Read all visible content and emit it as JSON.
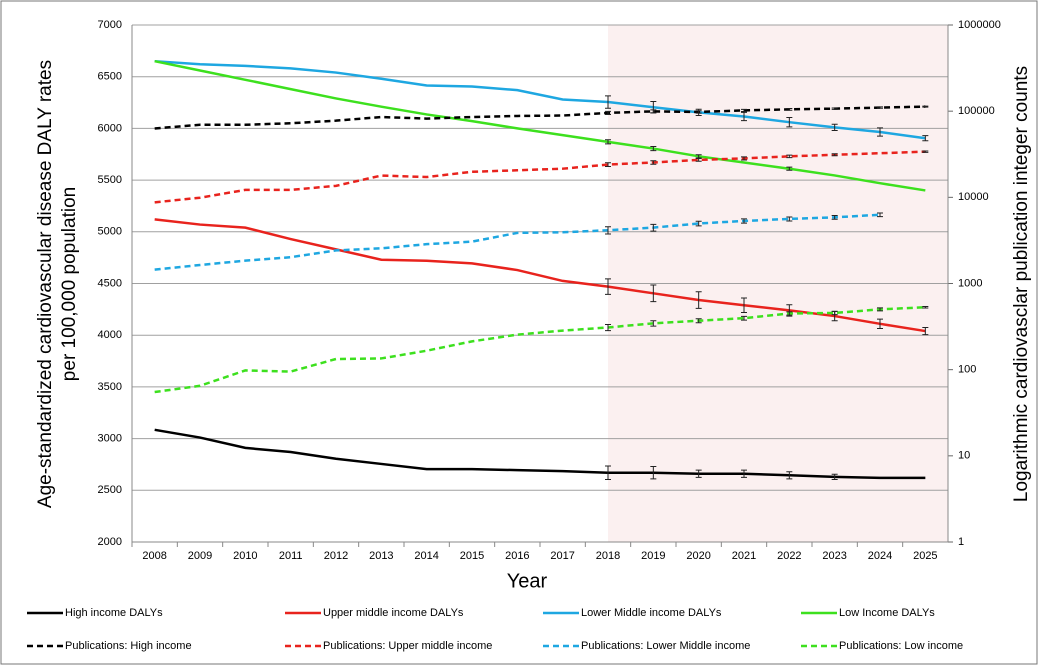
{
  "chart_data": {
    "type": "line",
    "x_label": "Year",
    "y_label": [
      "Age-standardized cardiovascular disease DALY  rates",
      "per 100,000 population"
    ],
    "y2_label": "Logarithmic cardiovasclar publication integer counts",
    "categories": [
      "2008",
      "2009",
      "2010",
      "2011",
      "2012",
      "2013",
      "2014",
      "2015",
      "2016",
      "2017",
      "2018",
      "2019",
      "2020",
      "2021",
      "2022",
      "2023",
      "2024",
      "2025"
    ],
    "shade_from": "2018",
    "ylim": [
      2000,
      7000
    ],
    "yticks": [
      2000,
      2500,
      3000,
      3500,
      4000,
      4500,
      5000,
      5500,
      6000,
      6500,
      7000
    ],
    "y2lim": [
      1,
      1000000
    ],
    "y2ticks": [
      1,
      10,
      100,
      1000,
      10000,
      100000,
      1000000
    ],
    "y2_log": true,
    "grid": true,
    "series": [
      {
        "name": "High income DALYs",
        "color": "#000000",
        "dashed": false,
        "values": [
          3085,
          3010,
          2910,
          2870,
          2805,
          2755,
          2705,
          2705,
          2695,
          2685,
          2670,
          2670,
          2660,
          2660,
          2645,
          2630,
          2620,
          2620
        ],
        "errors": [
          null,
          null,
          null,
          null,
          null,
          null,
          null,
          null,
          null,
          null,
          65,
          60,
          35,
          35,
          35,
          25,
          null,
          null
        ]
      },
      {
        "name": "Upper middle income DALYs",
        "color": "#e8231d",
        "dashed": false,
        "values": [
          5120,
          5070,
          5040,
          4930,
          4830,
          4730,
          4720,
          4695,
          4630,
          4525,
          4470,
          4405,
          4340,
          4290,
          4240,
          4185,
          4110,
          4040
        ],
        "errors": [
          null,
          null,
          null,
          null,
          null,
          null,
          null,
          null,
          null,
          null,
          75,
          80,
          80,
          70,
          55,
          45,
          45,
          35
        ]
      },
      {
        "name": "Lower Middle income DALYs",
        "color": "#1ea7e1",
        "dashed": false,
        "values": [
          6650,
          6620,
          6605,
          6580,
          6540,
          6480,
          6415,
          6405,
          6370,
          6280,
          6255,
          6205,
          6155,
          6115,
          6060,
          6010,
          5965,
          5905
        ],
        "errors": [
          null,
          null,
          null,
          null,
          null,
          null,
          null,
          null,
          null,
          null,
          60,
          55,
          30,
          40,
          45,
          30,
          40,
          25
        ]
      },
      {
        "name": "Low Income DALYs",
        "color": "#3de01e",
        "dashed": false,
        "values": [
          6650,
          6560,
          6470,
          6380,
          6290,
          6210,
          6135,
          6070,
          6000,
          5935,
          5870,
          5805,
          5730,
          5670,
          5610,
          5545,
          5470,
          5400
        ],
        "errors": [
          null,
          null,
          null,
          null,
          null,
          null,
          null,
          null,
          null,
          null,
          20,
          20,
          15,
          null,
          15,
          null,
          null,
          null
        ]
      },
      {
        "name": "Publications: High income",
        "color": "#000000",
        "dashed": true,
        "axis": "y2",
        "values": [
          63000,
          69500,
          69500,
          72400,
          77600,
          85500,
          82000,
          85500,
          88000,
          89000,
          95500,
          99500,
          98000,
          102000,
          105000,
          107000,
          110000,
          113000
        ],
        "errors": [
          null,
          null,
          null,
          null,
          null,
          null,
          null,
          null,
          null,
          null,
          4000,
          4000,
          3000,
          3000,
          2500,
          2000,
          2000,
          1500
        ]
      },
      {
        "name": "Publications: Upper middle income",
        "color": "#e8231d",
        "dashed": true,
        "axis": "y2",
        "values": [
          8750,
          9900,
          12200,
          12200,
          13600,
          17900,
          17200,
          19800,
          20600,
          21500,
          24000,
          25400,
          27200,
          28300,
          29900,
          31200,
          32500,
          33900
        ],
        "errors": [
          null,
          null,
          null,
          null,
          null,
          null,
          null,
          null,
          null,
          null,
          1200,
          1200,
          1000,
          1200,
          1000,
          800,
          null,
          600
        ]
      },
      {
        "name": "Publications: Lower Middle income",
        "color": "#1ea7e1",
        "dashed": true,
        "axis": "y2",
        "values": [
          1450,
          1640,
          1840,
          2020,
          2420,
          2560,
          2860,
          3060,
          3870,
          3930,
          4150,
          4450,
          4970,
          5320,
          5620,
          5860,
          6280,
          null
        ],
        "errors": [
          null,
          null,
          null,
          null,
          null,
          null,
          null,
          null,
          null,
          null,
          400,
          400,
          300,
          300,
          300,
          300,
          300,
          null
        ]
      },
      {
        "name": "Publications: Low income",
        "color": "#3de01e",
        "dashed": true,
        "axis": "y2",
        "values": [
          55,
          65,
          98,
          95,
          133,
          135,
          166,
          213,
          255,
          284,
          309,
          345,
          370,
          396,
          449,
          455,
          501,
          530
        ],
        "errors": [
          null,
          null,
          null,
          null,
          null,
          null,
          null,
          null,
          null,
          null,
          25,
          25,
          20,
          20,
          20,
          20,
          20,
          10
        ]
      }
    ]
  }
}
